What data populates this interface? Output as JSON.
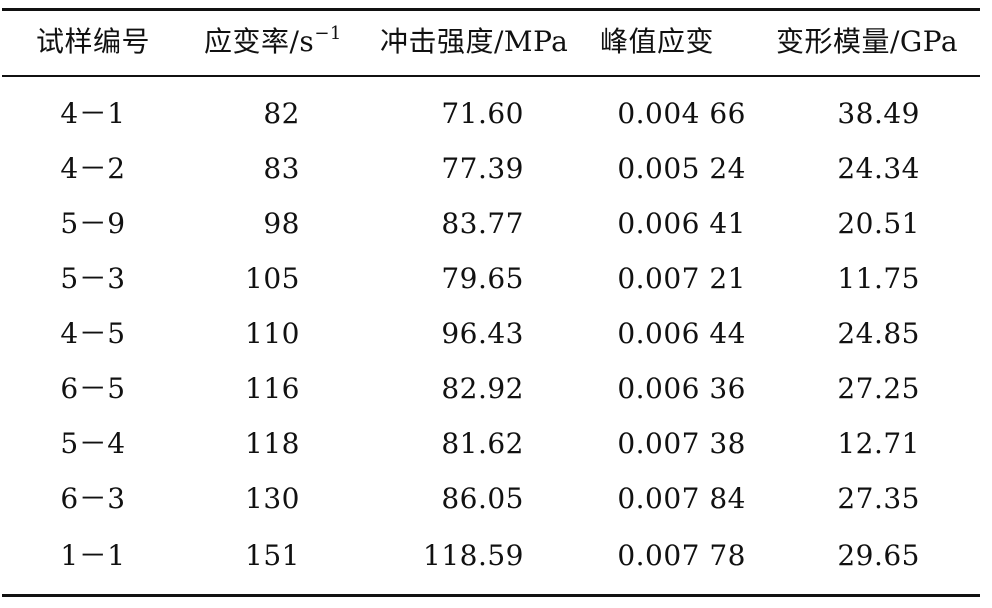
{
  "table": {
    "headers": [
      "试样编号",
      "应变率/s",
      "冲击强度/MPa",
      "峰值应变",
      "变形模量/GPa"
    ],
    "header_superscript": "−1",
    "rows": [
      [
        "4－1",
        "82",
        "71.60",
        "0.004 66",
        "38.49"
      ],
      [
        "4－2",
        "83",
        "77.39",
        "0.005 24",
        "24.34"
      ],
      [
        "5－9",
        "98",
        "83.77",
        "0.006 41",
        "20.51"
      ],
      [
        "5－3",
        "105",
        "79.65",
        "0.007 21",
        "11.75"
      ],
      [
        "4－5",
        "110",
        "96.43",
        "0.006 44",
        "24.85"
      ],
      [
        "6－5",
        "116",
        "82.92",
        "0.006 36",
        "27.25"
      ],
      [
        "5－4",
        "118",
        "81.62",
        "0.007 38",
        "12.71"
      ],
      [
        "6－3",
        "130",
        "86.05",
        "0.007 84",
        "27.35"
      ],
      [
        "1－1",
        "151",
        "118.59",
        "0.007 78",
        "29.65"
      ]
    ]
  }
}
